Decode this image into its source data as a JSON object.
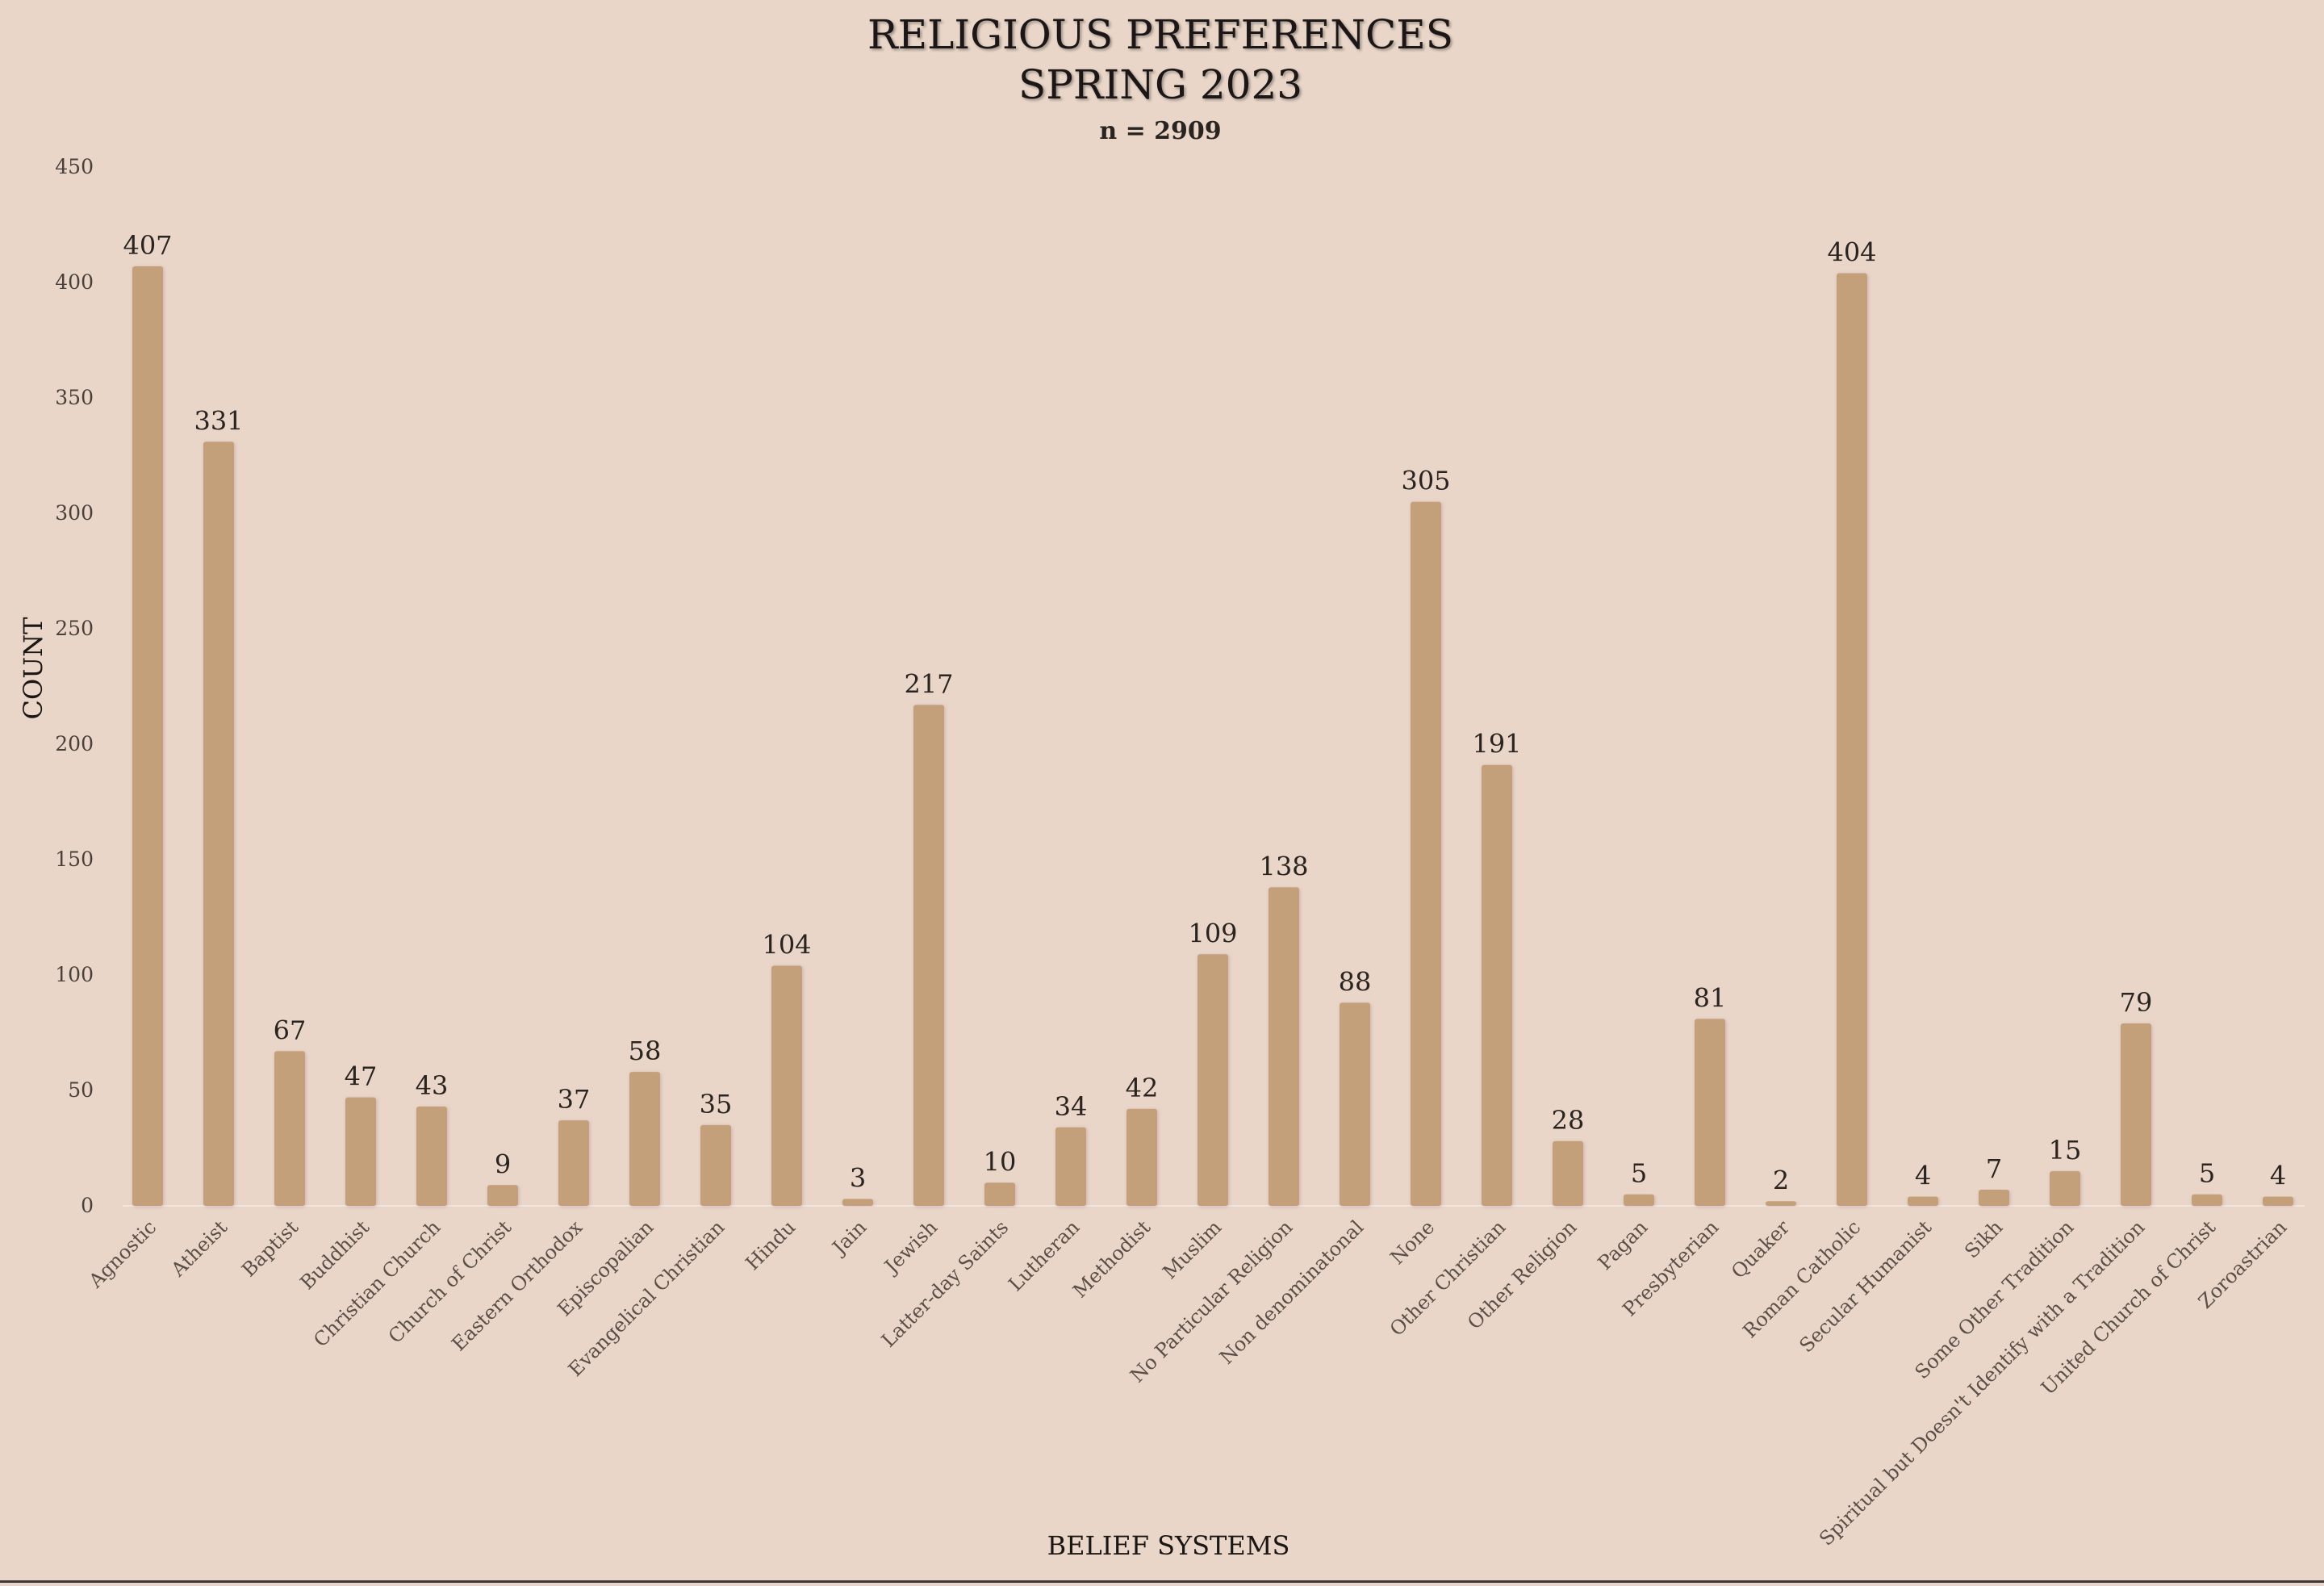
{
  "chart_data": {
    "type": "bar",
    "title": "RELIGIOUS PREFERENCES",
    "subtitle": "SPRING 2023",
    "note": "n = 2909",
    "xlabel": "BELIEF SYSTEMS",
    "ylabel": "COUNT",
    "ylim": [
      0,
      450
    ],
    "yticks": [
      0,
      50,
      100,
      150,
      200,
      250,
      300,
      350,
      400,
      450
    ],
    "grid": false,
    "data_labels": true,
    "bar_color": "#c4a07a",
    "background_color": "#e9d6c8",
    "categories": [
      "Agnostic",
      "Atheist",
      "Baptist",
      "Buddhist",
      "Christian Church",
      "Church of Christ",
      "Eastern Orthodox",
      "Episcopalian",
      "Evangelical Christian",
      "Hindu",
      "Jain",
      "Jewish",
      "Latter-day Saints",
      "Lutheran",
      "Methodist",
      "Muslim",
      "No Particular Religion",
      "Non denominatonal",
      "None",
      "Other Christian",
      "Other Religion",
      "Pagan",
      "Presbyterian",
      "Quaker",
      "Roman Catholic",
      "Secular Humanist",
      "Sikh",
      "Some Other Tradition",
      "Spiritual but Doesn't Identify with a Tradition",
      "United Church of Christ",
      "Zoroastrian"
    ],
    "values": [
      407,
      331,
      67,
      47,
      43,
      9,
      37,
      58,
      35,
      104,
      3,
      217,
      10,
      34,
      42,
      109,
      138,
      88,
      305,
      191,
      28,
      5,
      81,
      2,
      404,
      4,
      7,
      15,
      79,
      5,
      4
    ]
  }
}
